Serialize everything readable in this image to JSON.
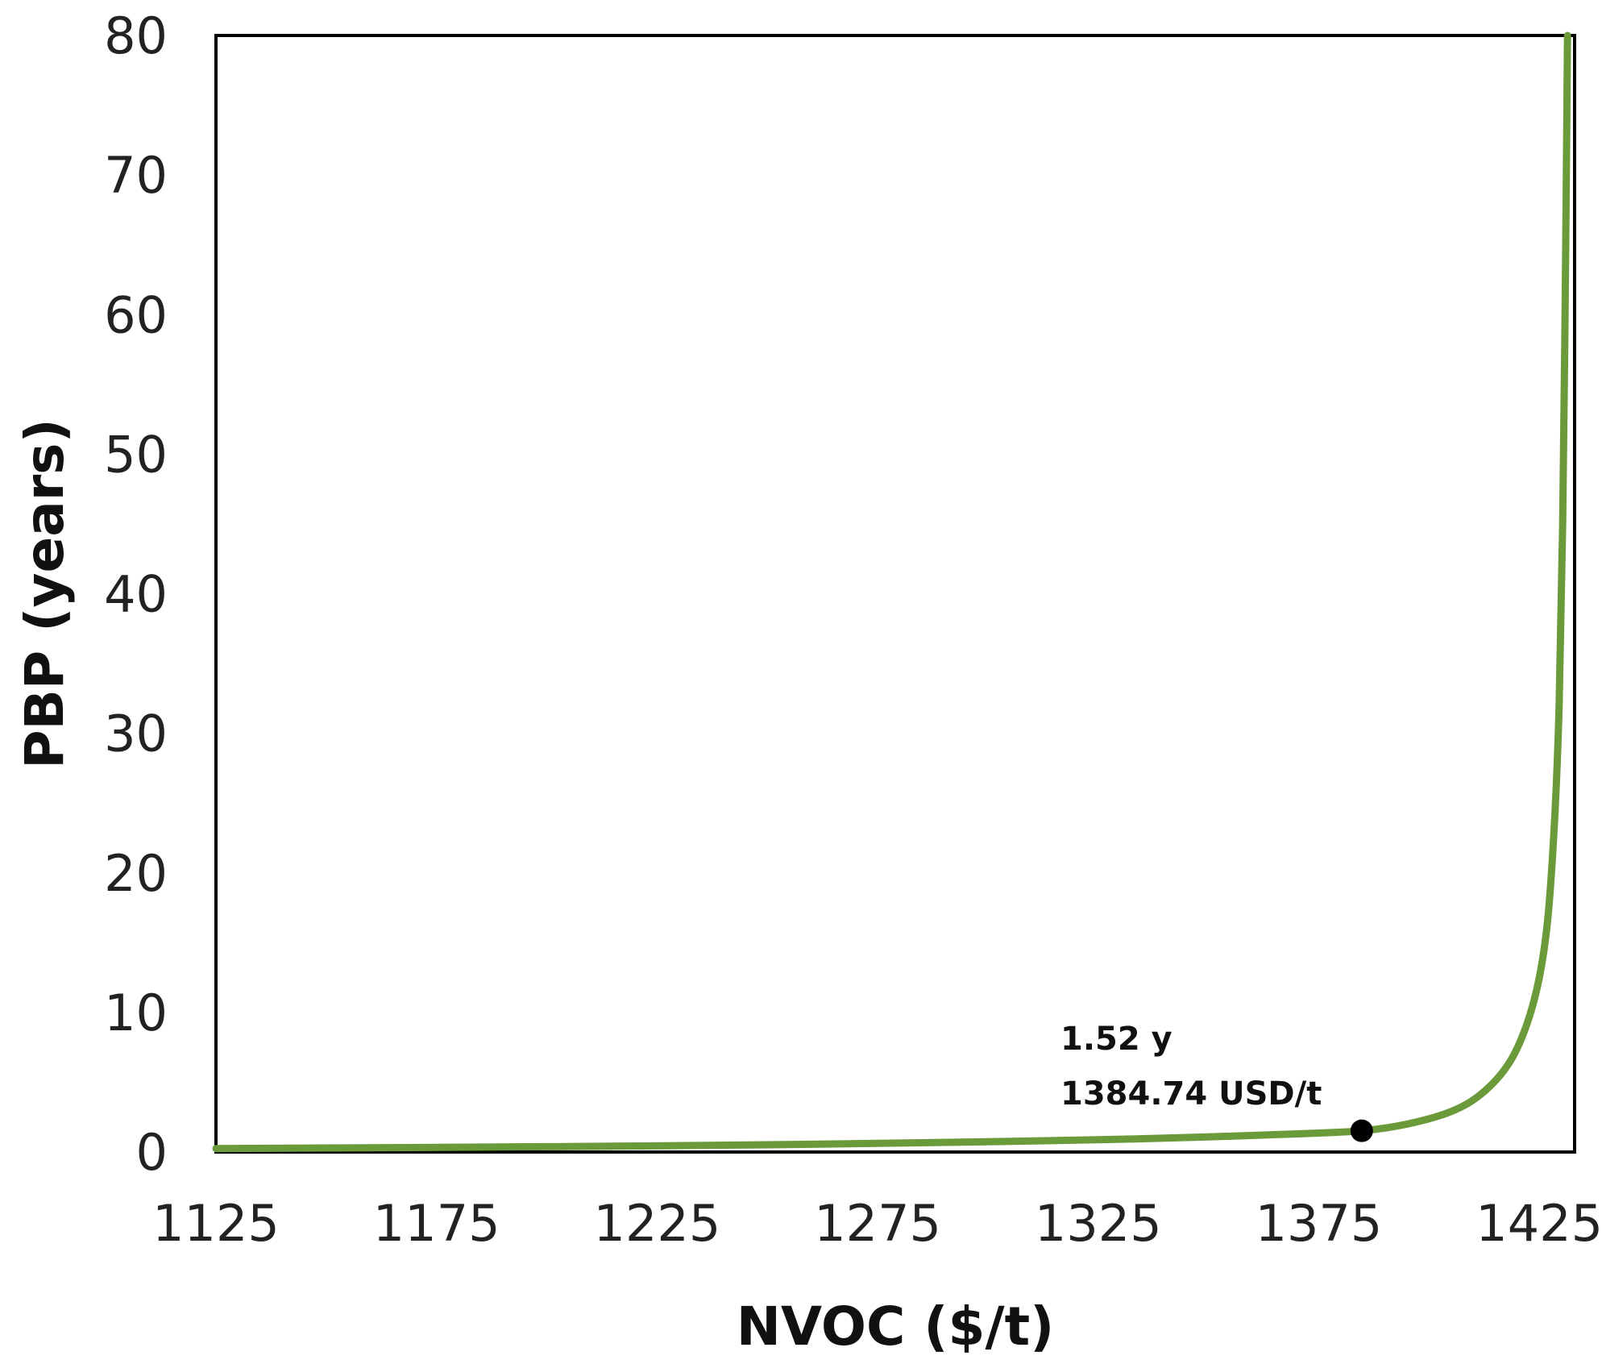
{
  "chart_data": {
    "type": "line",
    "xlabel": "NVOC ($/t)",
    "ylabel": "PBP (years)",
    "xlim": [
      1125,
      1433
    ],
    "ylim": [
      0,
      80
    ],
    "x_ticks": [
      1125,
      1175,
      1225,
      1275,
      1325,
      1375,
      1425
    ],
    "y_ticks": [
      0,
      10,
      20,
      30,
      40,
      50,
      60,
      70,
      80
    ],
    "grid": false,
    "legend": "none",
    "series": [
      {
        "color": "#6a9a3a",
        "x": [
          1125,
          1150,
          1175,
          1200,
          1225,
          1250,
          1275,
          1300,
          1325,
          1350,
          1370,
          1384.74,
          1395,
          1405,
          1412,
          1418,
          1422,
          1425,
          1427,
          1428.5,
          1429.5,
          1430.3,
          1430.9,
          1431.4
        ],
        "y": [
          0.25,
          0.29,
          0.33,
          0.38,
          0.44,
          0.52,
          0.62,
          0.74,
          0.88,
          1.08,
          1.3,
          1.52,
          2.0,
          2.9,
          4.2,
          6.3,
          9.0,
          12.5,
          17,
          24,
          32,
          45,
          62,
          80
        ]
      }
    ],
    "highlight_point": {
      "x": 1384.74,
      "y": 1.52,
      "color": "#000000"
    },
    "annotation": {
      "line1": "1.52 y",
      "line2": "1384.74 USD/t"
    }
  }
}
